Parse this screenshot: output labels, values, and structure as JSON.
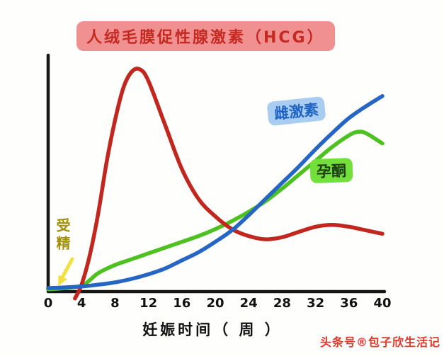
{
  "title": {
    "text": "人绒毛膜促性腺激素（HCG）"
  },
  "axis": {
    "xlabel": "妊娠时间（ 周 ）"
  },
  "labels": {
    "estrogen": "雌激素",
    "progesterone": "孕酮",
    "fertilization": "受精"
  },
  "watermark": "头条号®包子欣生活记",
  "colors": {
    "title_text": "#c42a22",
    "title_highlight": "#f19090",
    "hcg_curve": "#c2271f",
    "estrogen_curve": "#2566c4",
    "estrogen_highlight": "#a9ccf1",
    "progesterone_curve": "#4cc11f",
    "progesterone_highlight": "#72df3b",
    "fertilization_text": "#a3910a",
    "arrow": "#f2e03e",
    "axis": "#161616",
    "watermark": "#e1372b"
  },
  "chart_data": {
    "type": "line",
    "title": "人绒毛膜促性腺激素（HCG）",
    "xlabel": "妊娠时间（周）",
    "ylabel": "",
    "x_ticks": [
      0,
      4,
      8,
      12,
      16,
      20,
      24,
      28,
      32,
      36,
      40
    ],
    "xlim": [
      0,
      40
    ],
    "ylim": [
      0,
      100
    ],
    "y_note": "relative hormone level, y-axis unlabeled (hand-drawn sketch)",
    "grid": false,
    "legend_position": "labels drawn beside curves",
    "series": [
      {
        "name": "HCG",
        "color": "#c2271f",
        "points": [
          [
            3.2,
            -3
          ],
          [
            4,
            3
          ],
          [
            5,
            16
          ],
          [
            6,
            34
          ],
          [
            7,
            56
          ],
          [
            8,
            74
          ],
          [
            9,
            88
          ],
          [
            10,
            95
          ],
          [
            11,
            96
          ],
          [
            12,
            91
          ],
          [
            14,
            72
          ],
          [
            16,
            53
          ],
          [
            18,
            40
          ],
          [
            20,
            32.5
          ],
          [
            22,
            27
          ],
          [
            24,
            24
          ],
          [
            26,
            22.6
          ],
          [
            28,
            23.5
          ],
          [
            30,
            25.8
          ],
          [
            32,
            28
          ],
          [
            34,
            28.8
          ],
          [
            36,
            28
          ],
          [
            38,
            26.5
          ],
          [
            40,
            25
          ]
        ]
      },
      {
        "name": "雌激素",
        "color": "#2566c4",
        "points": [
          [
            0,
            1.5
          ],
          [
            2,
            1.8
          ],
          [
            4,
            2.2
          ],
          [
            6,
            3
          ],
          [
            8,
            4
          ],
          [
            10,
            5.5
          ],
          [
            12,
            7.5
          ],
          [
            14,
            10
          ],
          [
            16,
            13.5
          ],
          [
            18,
            17
          ],
          [
            20,
            21.5
          ],
          [
            22,
            26.5
          ],
          [
            24,
            33
          ],
          [
            26,
            40
          ],
          [
            28,
            47
          ],
          [
            30,
            54
          ],
          [
            32,
            61.5
          ],
          [
            34,
            68.5
          ],
          [
            36,
            75
          ],
          [
            38,
            80
          ],
          [
            40,
            84.5
          ]
        ]
      },
      {
        "name": "孕酮",
        "color": "#4cc11f",
        "points": [
          [
            0,
            1
          ],
          [
            2,
            1.5
          ],
          [
            4,
            2.5
          ],
          [
            5,
            5
          ],
          [
            6,
            8
          ],
          [
            8,
            11.5
          ],
          [
            10,
            14
          ],
          [
            12,
            16.5
          ],
          [
            14,
            19
          ],
          [
            16,
            21.5
          ],
          [
            18,
            24
          ],
          [
            20,
            27
          ],
          [
            22,
            30.5
          ],
          [
            24,
            34.5
          ],
          [
            26,
            39
          ],
          [
            28,
            44.5
          ],
          [
            30,
            50.5
          ],
          [
            32,
            56.5
          ],
          [
            34,
            62.5
          ],
          [
            36,
            67.5
          ],
          [
            37,
            69
          ],
          [
            38,
            68.5
          ],
          [
            40,
            64
          ]
        ]
      }
    ],
    "annotations": [
      {
        "text": "受精",
        "target_week": 4,
        "style": "yellow arrow pointing down-left to the x-axis near week 4"
      }
    ]
  }
}
